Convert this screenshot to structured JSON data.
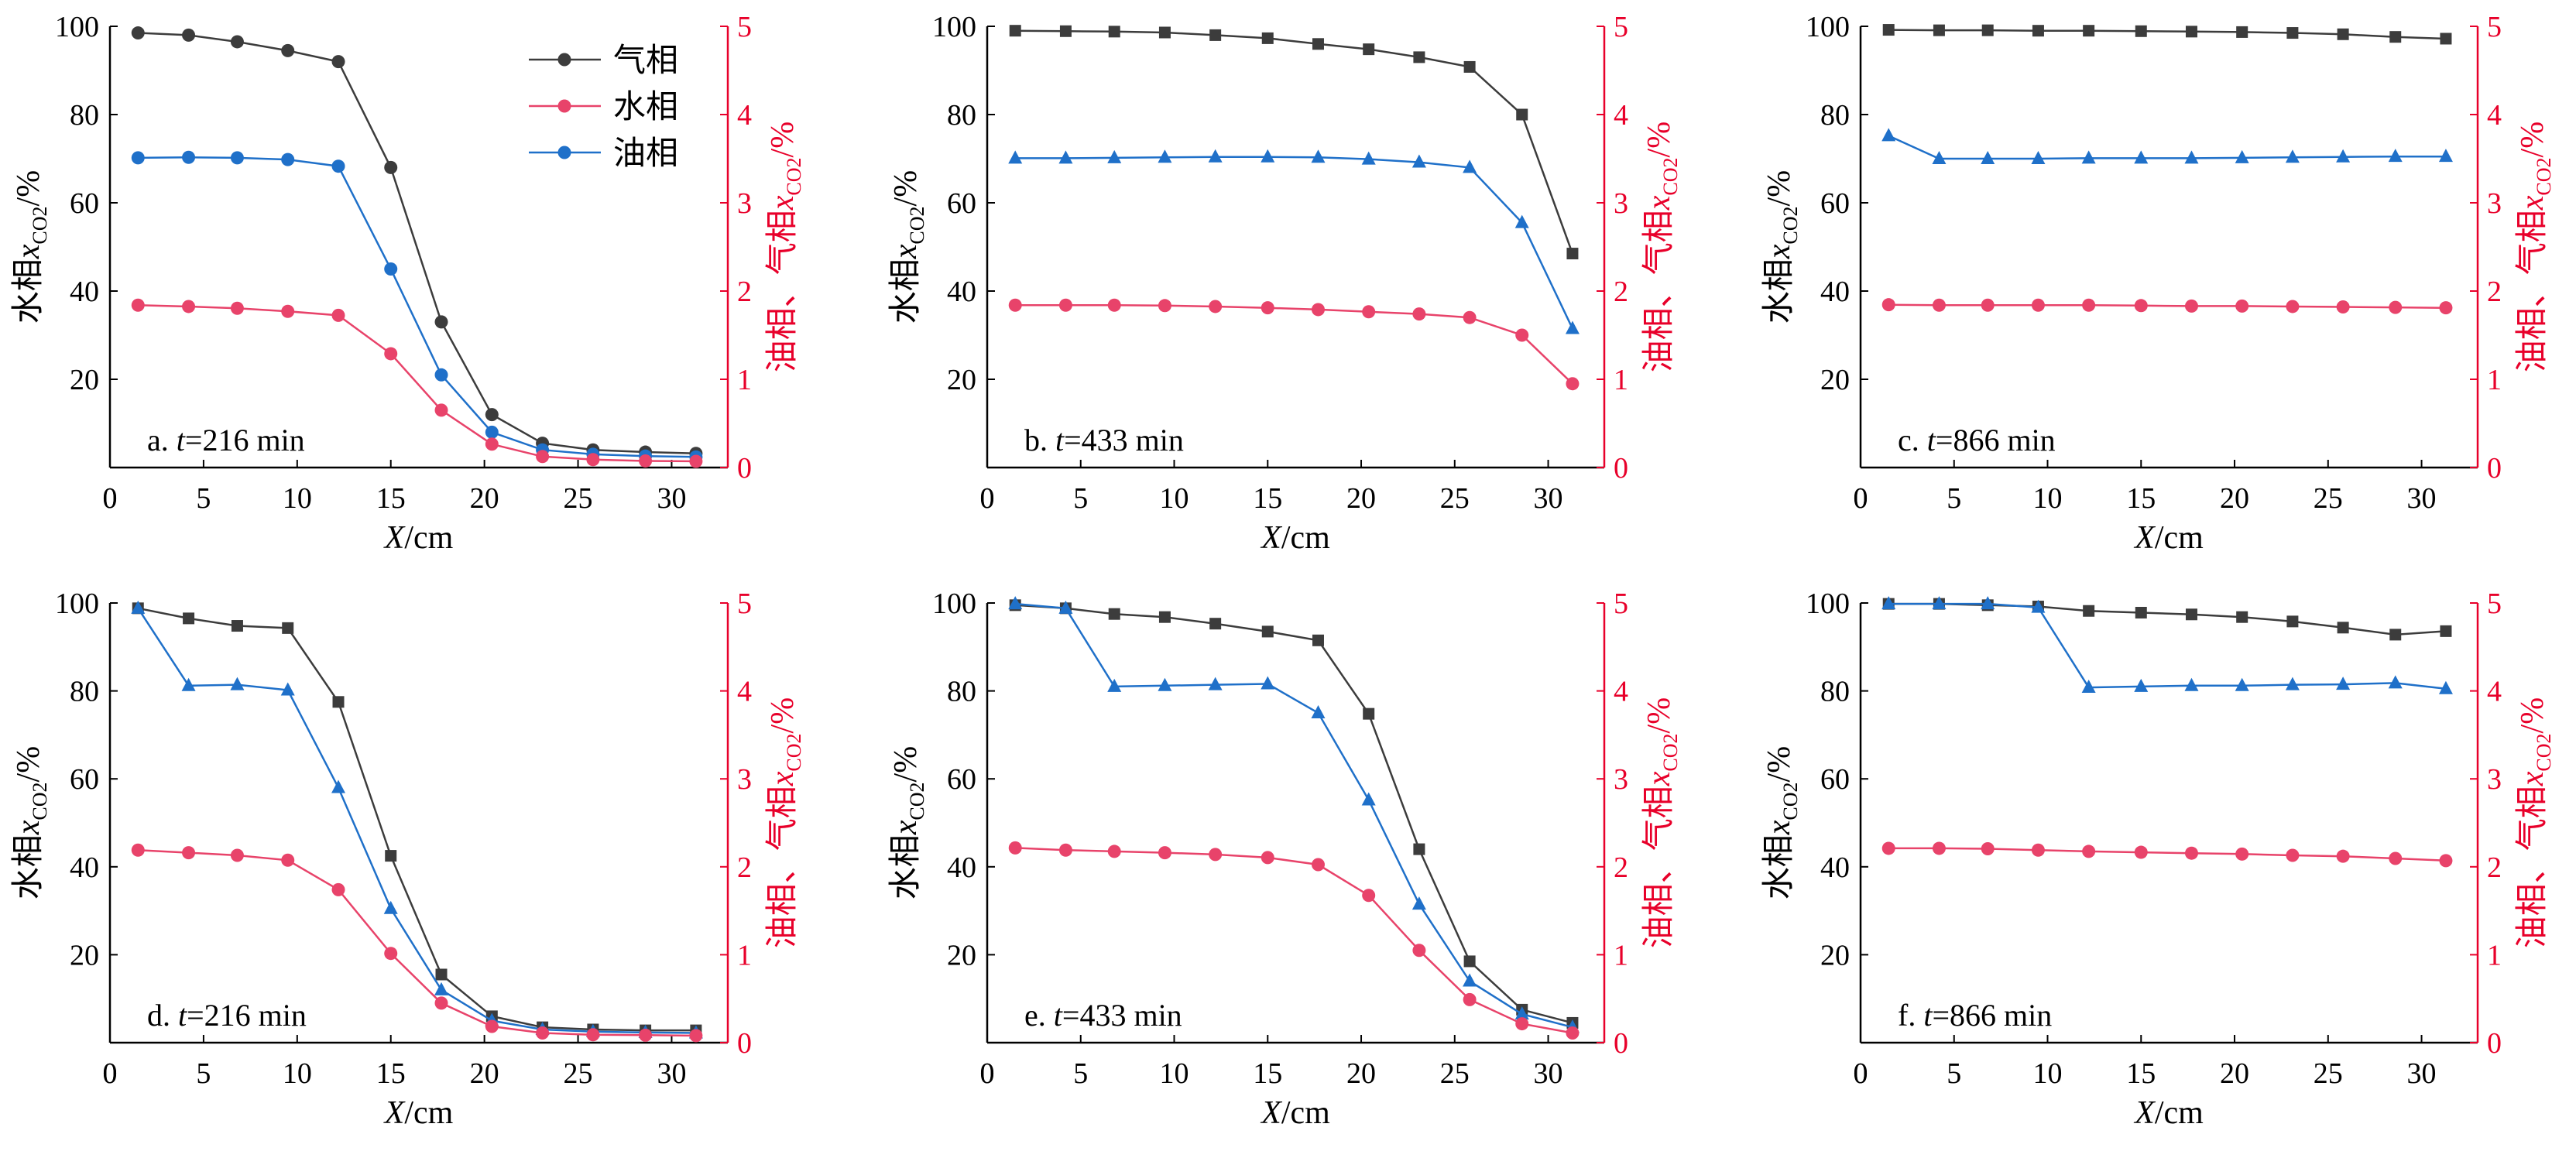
{
  "colors": {
    "gas": "#3c3c3c",
    "water": "#e8436a",
    "oil": "#1f70c9",
    "left_axis": "#000000",
    "right_axis": "#e8002a"
  },
  "common": {
    "xlabel": "X/cm",
    "ylabel_left": "水相x CO2 /%",
    "ylabel_right": "油相、气相x CO2 /%",
    "xticks": [
      "0",
      "5",
      "10",
      "15",
      "20",
      "25",
      "30"
    ],
    "yticks_left": [
      "20",
      "40",
      "60",
      "80",
      "100"
    ],
    "yticks_right": [
      "0",
      "1",
      "2",
      "3",
      "4",
      "5"
    ]
  },
  "legend": [
    {
      "label": "气相",
      "key": "gas"
    },
    {
      "label": "水相",
      "key": "water"
    },
    {
      "label": "油相",
      "key": "oil"
    }
  ],
  "chart_data": [
    {
      "type": "line",
      "label": "a. t=216 min",
      "label_prefix": "a.",
      "label_time": "t",
      "label_rest": "=216 min",
      "xlim": [
        0,
        33
      ],
      "ylim_left": [
        0,
        100
      ],
      "ylim_right": [
        0,
        5
      ],
      "grid": false,
      "legend_position": "top-right",
      "marker": "circle",
      "x": [
        1.5,
        4.2,
        6.8,
        9.5,
        12.2,
        15,
        17.7,
        20.4,
        23.1,
        25.8,
        28.6,
        31.3
      ],
      "series": [
        {
          "name": "气相",
          "key": "gas",
          "axis": "left",
          "values": [
            98.5,
            98,
            96.5,
            94.5,
            92,
            68,
            33,
            12,
            5.5,
            4,
            3.5,
            3.2
          ]
        },
        {
          "name": "油相",
          "key": "oil",
          "axis": "left",
          "values": [
            70.2,
            70.3,
            70.2,
            69.8,
            68.3,
            45,
            21,
            8,
            4,
            3,
            2.6,
            2.4
          ]
        },
        {
          "name": "水相",
          "key": "water",
          "axis": "left",
          "values": [
            36.8,
            36.5,
            36.1,
            35.4,
            34.5,
            25.8,
            13,
            5.3,
            2.5,
            1.8,
            1.5,
            1.4
          ]
        }
      ]
    },
    {
      "type": "line",
      "label": "b. t=433 min",
      "label_prefix": "b.",
      "label_time": "t",
      "label_rest": "=433 min",
      "xlim": [
        0,
        33
      ],
      "ylim_left": [
        0,
        100
      ],
      "ylim_right": [
        0,
        5
      ],
      "grid": false,
      "marker": "mixed",
      "x": [
        1.5,
        4.2,
        6.8,
        9.5,
        12.2,
        15,
        17.7,
        20.4,
        23.1,
        25.8,
        28.6,
        31.3
      ],
      "series": [
        {
          "name": "气相",
          "key": "gas",
          "axis": "left",
          "marker": "square",
          "values": [
            99,
            98.9,
            98.8,
            98.6,
            98,
            97.3,
            96,
            94.8,
            93,
            90.8,
            80,
            48.5
          ]
        },
        {
          "name": "油相",
          "key": "oil",
          "axis": "left",
          "marker": "triangle",
          "values": [
            70.1,
            70.1,
            70.2,
            70.3,
            70.4,
            70.4,
            70.3,
            69.9,
            69.2,
            68,
            55.5,
            31.5
          ]
        },
        {
          "name": "水相",
          "key": "water",
          "axis": "left",
          "marker": "circle",
          "values": [
            36.8,
            36.8,
            36.8,
            36.7,
            36.5,
            36.2,
            35.8,
            35.3,
            34.8,
            34,
            30,
            19
          ]
        }
      ]
    },
    {
      "type": "line",
      "label": "c. t=866 min",
      "label_prefix": "c.",
      "label_time": "t",
      "label_rest": "=866 min",
      "xlim": [
        0,
        33
      ],
      "ylim_left": [
        0,
        100
      ],
      "ylim_right": [
        0,
        5
      ],
      "grid": false,
      "marker": "mixed",
      "x": [
        1.5,
        4.2,
        6.8,
        9.5,
        12.2,
        15,
        17.7,
        20.4,
        23.1,
        25.8,
        28.6,
        31.3
      ],
      "series": [
        {
          "name": "气相",
          "key": "gas",
          "axis": "left",
          "marker": "square",
          "values": [
            99.2,
            99.1,
            99.1,
            99,
            99,
            98.9,
            98.8,
            98.7,
            98.5,
            98.2,
            97.6,
            97.2
          ]
        },
        {
          "name": "油相",
          "key": "oil",
          "axis": "left",
          "marker": "triangle",
          "values": [
            75.2,
            70,
            70,
            70,
            70.1,
            70.1,
            70.1,
            70.2,
            70.3,
            70.4,
            70.5,
            70.5
          ]
        },
        {
          "name": "水相",
          "key": "water",
          "axis": "left",
          "marker": "circle",
          "values": [
            36.9,
            36.8,
            36.8,
            36.8,
            36.8,
            36.7,
            36.6,
            36.6,
            36.5,
            36.4,
            36.3,
            36.2
          ]
        }
      ]
    },
    {
      "type": "line",
      "label": "d. t=216 min",
      "label_prefix": "d.",
      "label_time": "t",
      "label_rest": "=216 min",
      "xlim": [
        0,
        33
      ],
      "ylim_left": [
        0,
        100
      ],
      "ylim_right": [
        0,
        5
      ],
      "grid": false,
      "marker": "mixed",
      "x": [
        1.5,
        4.2,
        6.8,
        9.5,
        12.2,
        15,
        17.7,
        20.4,
        23.1,
        25.8,
        28.6,
        31.3
      ],
      "series": [
        {
          "name": "气相",
          "key": "gas",
          "axis": "left",
          "marker": "square",
          "values": [
            98.8,
            96.5,
            94.8,
            94.3,
            77.5,
            42.5,
            15.5,
            6,
            3.5,
            3,
            2.8,
            2.8
          ]
        },
        {
          "name": "油相",
          "key": "oil",
          "axis": "left",
          "marker": "triangle",
          "values": [
            98.8,
            81.2,
            81.4,
            80.2,
            58,
            30.5,
            12,
            5,
            3,
            2.5,
            2.3,
            2.2
          ]
        },
        {
          "name": "水相",
          "key": "water",
          "axis": "left",
          "marker": "circle",
          "values": [
            43.8,
            43.2,
            42.6,
            41.5,
            34.8,
            20.3,
            9,
            3.7,
            2.2,
            1.8,
            1.7,
            1.6
          ]
        }
      ]
    },
    {
      "type": "line",
      "label": "e. t=433 min",
      "label_prefix": "e.",
      "label_time": "t",
      "label_rest": "=433 min",
      "xlim": [
        0,
        33
      ],
      "ylim_left": [
        0,
        100
      ],
      "ylim_right": [
        0,
        5
      ],
      "grid": false,
      "marker": "mixed",
      "x": [
        1.5,
        4.2,
        6.8,
        9.5,
        12.2,
        15,
        17.7,
        20.4,
        23.1,
        25.8,
        28.6,
        31.3
      ],
      "series": [
        {
          "name": "气相",
          "key": "gas",
          "axis": "left",
          "marker": "square",
          "values": [
            99.5,
            98.8,
            97.5,
            96.8,
            95.3,
            93.5,
            91.5,
            74.8,
            44,
            18.5,
            7.5,
            4.5
          ]
        },
        {
          "name": "油相",
          "key": "oil",
          "axis": "left",
          "marker": "triangle",
          "values": [
            99.8,
            98.8,
            81,
            81.2,
            81.4,
            81.6,
            75,
            55.2,
            31.5,
            14,
            6.5,
            3.5
          ]
        },
        {
          "name": "水相",
          "key": "water",
          "axis": "left",
          "marker": "circle",
          "values": [
            44.3,
            43.8,
            43.5,
            43.2,
            42.8,
            42.1,
            40.5,
            33.5,
            21,
            9.8,
            4.3,
            2.2
          ]
        }
      ]
    },
    {
      "type": "line",
      "label": "f. t=866 min",
      "label_prefix": "f.",
      "label_time": "t",
      "label_rest": "=866 min",
      "xlim": [
        0,
        33
      ],
      "ylim_left": [
        0,
        100
      ],
      "ylim_right": [
        0,
        5
      ],
      "grid": false,
      "marker": "mixed",
      "x": [
        1.5,
        4.2,
        6.8,
        9.5,
        12.2,
        15,
        17.7,
        20.4,
        23.1,
        25.8,
        28.6,
        31.3
      ],
      "series": [
        {
          "name": "气相",
          "key": "gas",
          "axis": "left",
          "marker": "square",
          "values": [
            99.8,
            99.8,
            99.5,
            99.2,
            98.2,
            97.8,
            97.4,
            96.8,
            95.8,
            94.4,
            92.8,
            93.6
          ]
        },
        {
          "name": "油相",
          "key": "oil",
          "axis": "left",
          "marker": "triangle",
          "values": [
            99.8,
            99.8,
            99.8,
            99,
            80.8,
            81,
            81.2,
            81.2,
            81.4,
            81.5,
            81.8,
            80.5
          ]
        },
        {
          "name": "水相",
          "key": "water",
          "axis": "left",
          "marker": "circle",
          "values": [
            44.2,
            44.2,
            44.1,
            43.8,
            43.5,
            43.3,
            43.1,
            42.9,
            42.6,
            42.4,
            41.9,
            41.4
          ]
        }
      ]
    }
  ]
}
